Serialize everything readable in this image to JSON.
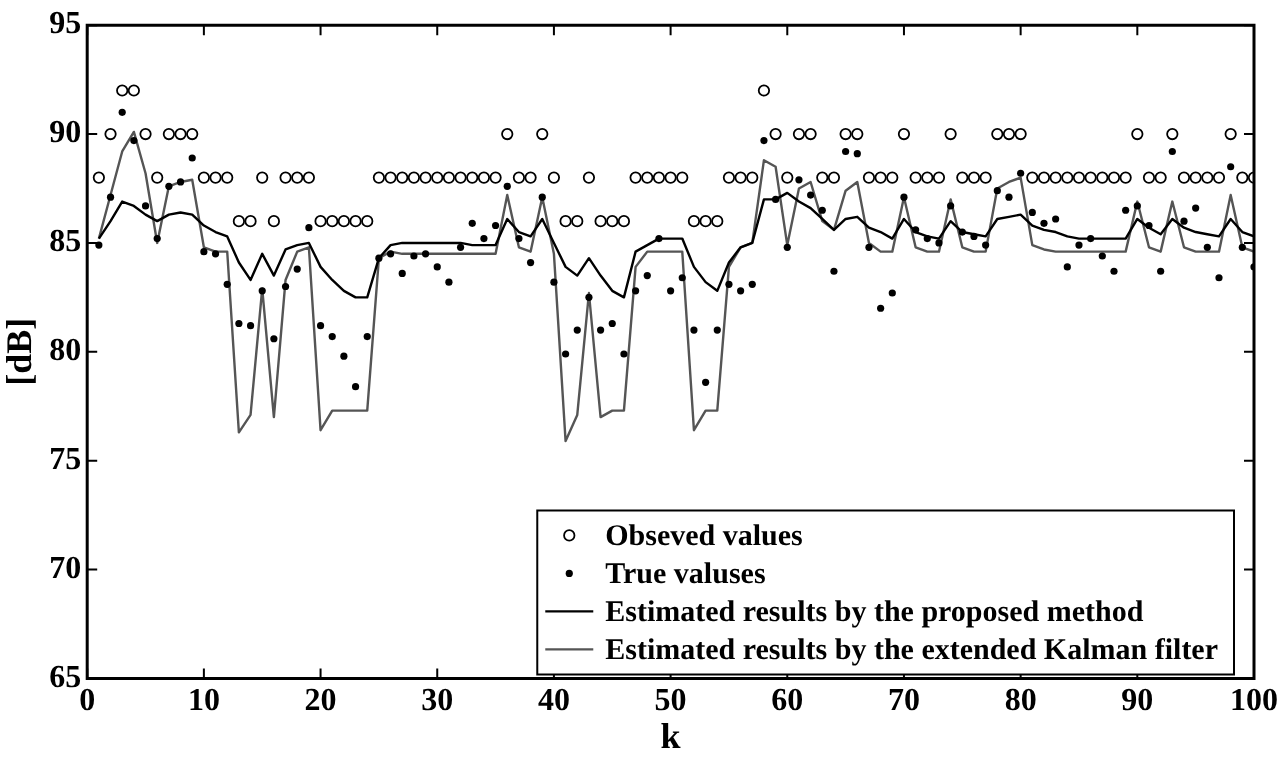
{
  "chart_data": {
    "type": "scatter",
    "xlabel": "k",
    "ylabel": "[dB]",
    "xlim": [
      0,
      100
    ],
    "ylim": [
      65,
      95
    ],
    "xticks": [
      0,
      10,
      20,
      30,
      40,
      50,
      60,
      70,
      80,
      90,
      100
    ],
    "yticks": [
      65,
      70,
      75,
      80,
      85,
      90,
      95
    ],
    "grid": false,
    "legend": "bottom right",
    "x": [
      1,
      2,
      3,
      4,
      5,
      6,
      7,
      8,
      9,
      10,
      11,
      12,
      13,
      14,
      15,
      16,
      17,
      18,
      19,
      20,
      21,
      22,
      23,
      24,
      25,
      26,
      27,
      28,
      29,
      30,
      31,
      32,
      33,
      34,
      35,
      36,
      37,
      38,
      39,
      40,
      41,
      42,
      43,
      44,
      45,
      46,
      47,
      48,
      49,
      50,
      51,
      52,
      53,
      54,
      55,
      56,
      57,
      58,
      59,
      60,
      61,
      62,
      63,
      64,
      65,
      66,
      67,
      68,
      69,
      70,
      71,
      72,
      73,
      74,
      75,
      76,
      77,
      78,
      79,
      80,
      81,
      82,
      83,
      84,
      85,
      86,
      87,
      88,
      89,
      90,
      91,
      92,
      93,
      94,
      95,
      96,
      97,
      98,
      99,
      100
    ],
    "series": [
      {
        "name": "Obseved values",
        "marker": "circle",
        "color": "#000000",
        "values": [
          88,
          90,
          92,
          92,
          90,
          88,
          90,
          90,
          90,
          88,
          88,
          88,
          86,
          86,
          88,
          86,
          88,
          88,
          88,
          86,
          86,
          86,
          86,
          86,
          88,
          88,
          88,
          88,
          88,
          88,
          88,
          88,
          88,
          88,
          88,
          90,
          88,
          88,
          90,
          88,
          86,
          86,
          88,
          86,
          86,
          86,
          88,
          88,
          88,
          88,
          88,
          86,
          86,
          86,
          88,
          88,
          88,
          92,
          90,
          88,
          90,
          90,
          88,
          88,
          90,
          90,
          88,
          88,
          88,
          90,
          88,
          88,
          88,
          90,
          88,
          88,
          88,
          90,
          90,
          90,
          88,
          88,
          88,
          88,
          88,
          88,
          88,
          88,
          88,
          90,
          88,
          88,
          90,
          88,
          88,
          88,
          88,
          90,
          88,
          88
        ]
      },
      {
        "name": "True valuses",
        "marker": "dot",
        "color": "#000000",
        "values": [
          84.9,
          87.1,
          91.0,
          89.7,
          86.7,
          85.2,
          87.6,
          87.8,
          88.9,
          84.6,
          84.5,
          83.1,
          81.3,
          81.2,
          82.8,
          80.6,
          83.0,
          83.8,
          85.7,
          81.2,
          80.7,
          79.8,
          78.4,
          80.7,
          84.3,
          84.5,
          83.6,
          84.4,
          84.5,
          83.9,
          83.2,
          84.8,
          85.9,
          85.2,
          85.8,
          87.6,
          85.2,
          84.1,
          87.1,
          83.2,
          79.9,
          81.0,
          82.5,
          81.0,
          81.3,
          79.9,
          82.8,
          83.5,
          85.2,
          82.8,
          83.4,
          81.0,
          78.6,
          81.0,
          83.1,
          82.8,
          83.1,
          89.7,
          87.0,
          84.8,
          87.9,
          87.2,
          86.5,
          83.7,
          89.2,
          89.1,
          84.8,
          82.0,
          82.7,
          87.1,
          85.6,
          85.2,
          85.0,
          86.7,
          85.5,
          85.3,
          84.9,
          87.4,
          87.1,
          88.2,
          86.4,
          85.9,
          86.1,
          83.9,
          84.9,
          85.2,
          84.4,
          83.7,
          86.5,
          86.7,
          85.8,
          83.7,
          89.2,
          86.0,
          86.6,
          84.8,
          83.4,
          88.5,
          84.8,
          83.9
        ]
      },
      {
        "name": "Estimated results by the proposed method",
        "type": "line",
        "marker": "none",
        "line_style": "solid",
        "color": "#000000",
        "values": [
          85.2,
          86.0,
          86.9,
          86.7,
          86.3,
          86.0,
          86.3,
          86.4,
          86.3,
          85.8,
          85.5,
          85.3,
          84.1,
          83.3,
          84.5,
          83.5,
          84.7,
          84.9,
          85.0,
          83.9,
          83.3,
          82.8,
          82.5,
          82.5,
          84.3,
          84.9,
          85.0,
          85.0,
          85.0,
          85.0,
          85.0,
          85.0,
          84.9,
          84.9,
          84.9,
          86.1,
          85.5,
          85.3,
          86.1,
          85.0,
          83.9,
          83.5,
          84.3,
          83.5,
          82.8,
          82.5,
          84.6,
          84.9,
          85.2,
          85.2,
          85.2,
          83.9,
          83.2,
          82.8,
          84.1,
          84.8,
          85.0,
          87.0,
          87.0,
          87.3,
          86.9,
          86.6,
          86.1,
          85.6,
          86.1,
          86.2,
          85.7,
          85.5,
          85.2,
          86.1,
          85.5,
          85.3,
          85.2,
          86.0,
          85.5,
          85.4,
          85.3,
          86.1,
          86.2,
          86.3,
          85.8,
          85.6,
          85.5,
          85.3,
          85.2,
          85.2,
          85.2,
          85.2,
          85.2,
          86.1,
          85.7,
          85.4,
          86.1,
          85.7,
          85.5,
          85.4,
          85.3,
          86.1,
          85.5,
          85.3
        ]
      },
      {
        "name": "Estimated results by the extended Kalman filter",
        "type": "line",
        "marker": "none",
        "line_style": "solid",
        "color": "#555555",
        "values": [
          85.2,
          87.2,
          89.2,
          90.1,
          88.2,
          85.0,
          87.6,
          87.8,
          87.9,
          84.8,
          84.6,
          84.6,
          76.3,
          77.1,
          82.9,
          77.0,
          83.3,
          84.6,
          84.8,
          76.4,
          77.3,
          77.3,
          77.3,
          77.3,
          84.3,
          84.6,
          84.5,
          84.5,
          84.5,
          84.5,
          84.5,
          84.5,
          84.5,
          84.5,
          84.5,
          87.2,
          84.8,
          84.6,
          87.1,
          84.5,
          75.9,
          77.1,
          82.7,
          77.0,
          77.3,
          77.3,
          83.9,
          84.6,
          84.6,
          84.6,
          84.6,
          76.4,
          77.3,
          77.3,
          83.9,
          84.8,
          85.0,
          88.8,
          88.5,
          84.9,
          87.5,
          87.8,
          86.0,
          85.6,
          87.4,
          87.8,
          85.0,
          84.6,
          84.6,
          87.1,
          84.8,
          84.6,
          84.6,
          87.0,
          84.8,
          84.6,
          84.6,
          87.5,
          87.8,
          88.0,
          84.9,
          84.7,
          84.6,
          84.6,
          84.6,
          84.6,
          84.6,
          84.6,
          84.6,
          86.9,
          84.8,
          84.6,
          86.9,
          84.8,
          84.6,
          84.6,
          84.6,
          87.2,
          84.8,
          84.6
        ]
      }
    ]
  }
}
